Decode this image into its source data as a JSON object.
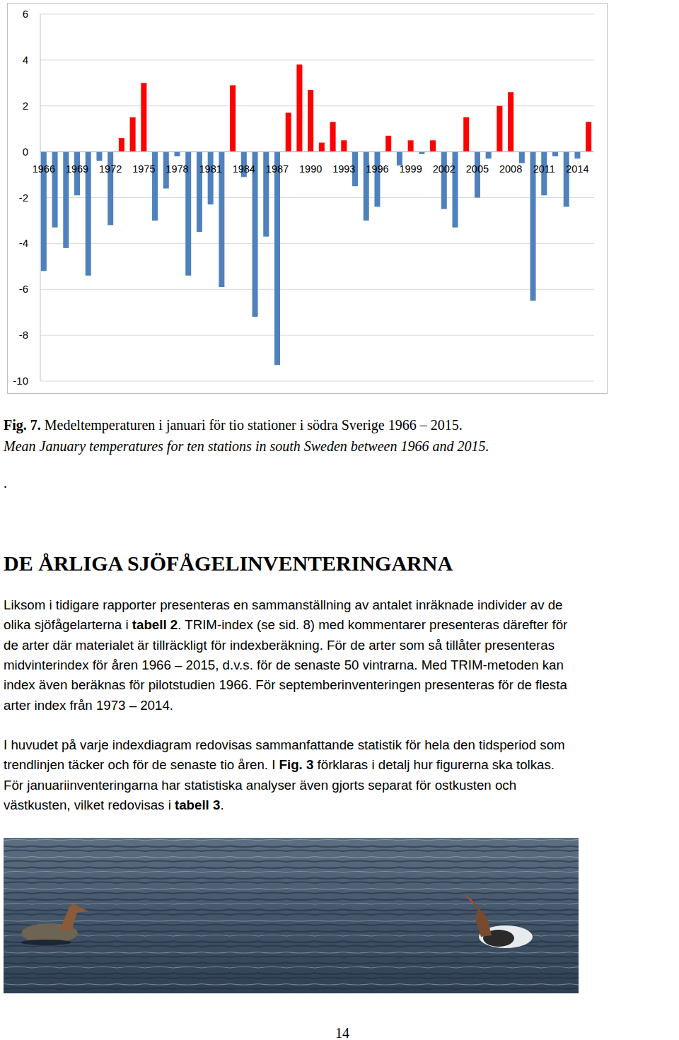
{
  "chart_data": {
    "type": "bar",
    "categories": [
      "1966",
      null,
      null,
      "1969",
      null,
      null,
      "1972",
      null,
      null,
      "1975",
      null,
      null,
      "1978",
      null,
      null,
      "1981",
      null,
      null,
      "1984",
      null,
      null,
      "1987",
      null,
      null,
      "1990",
      null,
      null,
      "1993",
      null,
      null,
      "1996",
      null,
      null,
      "1999",
      null,
      null,
      "2002",
      null,
      null,
      "2005",
      null,
      null,
      "2008",
      null,
      null,
      "2011",
      null,
      null,
      "2014",
      null
    ],
    "values": [
      -5.2,
      -3.3,
      -4.2,
      -1.9,
      -5.4,
      -0.4,
      -3.2,
      0.6,
      1.5,
      3.0,
      -3.0,
      -1.6,
      -0.2,
      -5.4,
      -3.5,
      -2.3,
      -5.9,
      2.9,
      -1.1,
      -7.2,
      -3.7,
      -9.3,
      1.7,
      3.8,
      2.7,
      0.4,
      1.3,
      0.5,
      -1.5,
      -3.0,
      -2.4,
      0.7,
      -0.6,
      0.5,
      -0.1,
      0.5,
      -2.5,
      -3.3,
      1.5,
      -2.0,
      -0.3,
      2.0,
      2.6,
      -0.5,
      -6.5,
      -1.9,
      -0.2,
      -2.4,
      -0.3,
      1.3
    ],
    "colors": [
      "#4f81bd",
      "#4f81bd",
      "#4f81bd",
      "#4f81bd",
      "#4f81bd",
      "#4f81bd",
      "#4f81bd",
      "#ff0000",
      "#ff0000",
      "#ff0000",
      "#4f81bd",
      "#4f81bd",
      "#4f81bd",
      "#4f81bd",
      "#4f81bd",
      "#4f81bd",
      "#4f81bd",
      "#ff0000",
      "#4f81bd",
      "#4f81bd",
      "#4f81bd",
      "#4f81bd",
      "#ff0000",
      "#ff0000",
      "#ff0000",
      "#ff0000",
      "#ff0000",
      "#ff0000",
      "#4f81bd",
      "#4f81bd",
      "#4f81bd",
      "#ff0000",
      "#4f81bd",
      "#ff0000",
      "#4f81bd",
      "#ff0000",
      "#4f81bd",
      "#4f81bd",
      "#ff0000",
      "#4f81bd",
      "#4f81bd",
      "#ff0000",
      "#ff0000",
      "#4f81bd",
      "#4f81bd",
      "#4f81bd",
      "#4f81bd",
      "#4f81bd",
      "#4f81bd",
      "#ff0000"
    ],
    "ylim": [
      -10,
      6
    ],
    "yticks": [
      -10,
      -8,
      -6,
      -4,
      -2,
      0,
      2,
      4,
      6
    ],
    "grid": true
  },
  "caption": {
    "label": "Fig. 7.",
    "text_sv": "Medeltemperaturen i januari för tio stationer i södra Sverige 1966 – 2015.",
    "text_en": "Mean January temperatures for ten stations in south Sweden between 1966 and 2015."
  },
  "stray_mark": ".",
  "section": {
    "heading": "DE ÅRLIGA SJÖFÅGELINVENTERINGARNA",
    "paragraphs": [
      [
        [
          "Liksom i tidigare rapporter presenteras en sammanställning av antalet inräknade individer av de"
        ],
        [
          "olika sjöfågelarterna i ",
          {
            "text": "tabell 2",
            "bold": true
          },
          ". TRIM-index (se sid. 8) med kommentarer presenteras därefter för"
        ],
        [
          "de arter där materialet är tillräckligt för indexberäkning. För de arter som så tillåter presenteras"
        ],
        [
          "midvinterindex för åren 1966 – 2015, d.v.s. för de senaste 50 vintrarna. Med TRIM-metoden kan"
        ],
        [
          "index även beräknas för pilotstudien 1966. För septemberinventeringen presenteras för de flesta"
        ],
        [
          "arter index från 1973 – 2014."
        ]
      ],
      [
        [
          "I huvudet på varje indexdiagram redovisas sammanfattande statistik för hela den tidsperiod som"
        ],
        [
          "trendlinjen täcker och för de senaste tio åren. I ",
          {
            "text": "Fig. 3",
            "bold": true
          },
          " förklaras i detalj hur figurerna ska tolkas."
        ],
        [
          "För januariinventeringarna har statistiska analyser även gjorts separat för ostkusten och"
        ],
        [
          "västkusten, vilket redovisas i ",
          {
            "text": "tabell 3",
            "bold": true
          },
          "."
        ]
      ]
    ]
  },
  "page_number": "14"
}
